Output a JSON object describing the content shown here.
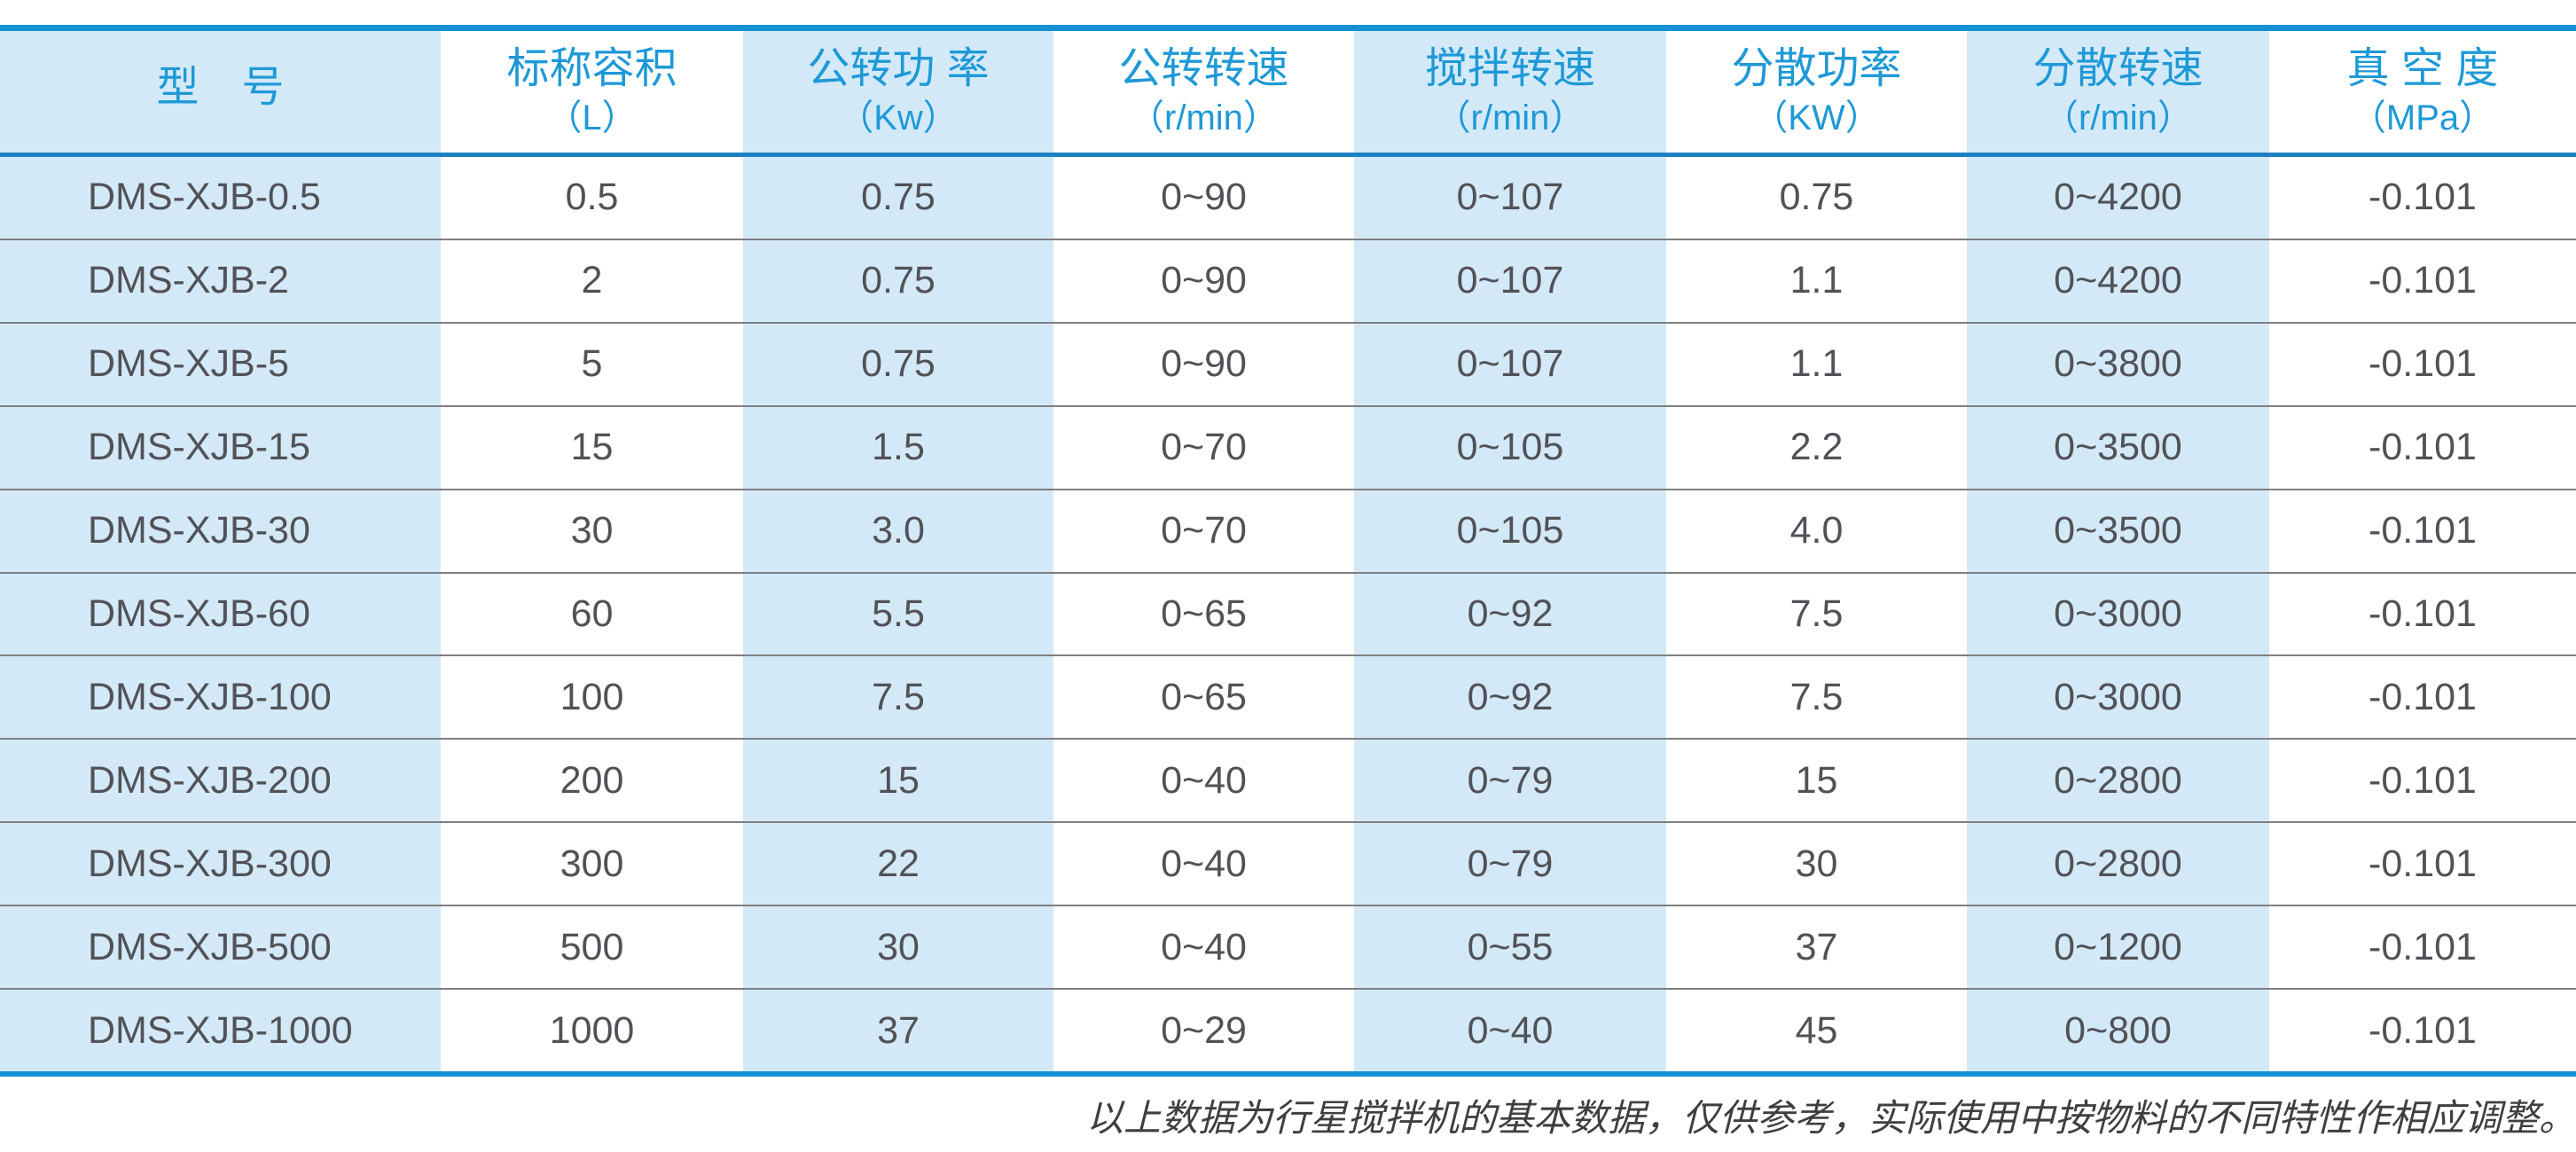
{
  "table": {
    "columns": [
      {
        "title": "型　号",
        "unit": ""
      },
      {
        "title": "标称容积",
        "unit": "（L）"
      },
      {
        "title": "公转功 率",
        "unit": "（Kw）"
      },
      {
        "title": "公转转速",
        "unit": "（r/min）"
      },
      {
        "title": "搅拌转速",
        "unit": "（r/min）"
      },
      {
        "title": "分散功率",
        "unit": "（KW）"
      },
      {
        "title": "分散转速",
        "unit": "（r/min）"
      },
      {
        "title": "真 空 度",
        "unit": "（MPa）"
      }
    ],
    "rows": [
      [
        "DMS-XJB-0.5",
        "0.5",
        "0.75",
        "0~90",
        "0~107",
        "0.75",
        "0~4200",
        "-0.101"
      ],
      [
        "DMS-XJB-2",
        "2",
        "0.75",
        "0~90",
        "0~107",
        "1.1",
        "0~4200",
        "-0.101"
      ],
      [
        "DMS-XJB-5",
        "5",
        "0.75",
        "0~90",
        "0~107",
        "1.1",
        "0~3800",
        "-0.101"
      ],
      [
        "DMS-XJB-15",
        "15",
        "1.5",
        "0~70",
        "0~105",
        "2.2",
        "0~3500",
        "-0.101"
      ],
      [
        "DMS-XJB-30",
        "30",
        "3.0",
        "0~70",
        "0~105",
        "4.0",
        "0~3500",
        "-0.101"
      ],
      [
        "DMS-XJB-60",
        "60",
        "5.5",
        "0~65",
        "0~92",
        "7.5",
        "0~3000",
        "-0.101"
      ],
      [
        "DMS-XJB-100",
        "100",
        "7.5",
        "0~65",
        "0~92",
        "7.5",
        "0~3000",
        "-0.101"
      ],
      [
        "DMS-XJB-200",
        "200",
        "15",
        "0~40",
        "0~79",
        "15",
        "0~2800",
        "-0.101"
      ],
      [
        "DMS-XJB-300",
        "300",
        "22",
        "0~40",
        "0~79",
        "30",
        "0~2800",
        "-0.101"
      ],
      [
        "DMS-XJB-500",
        "500",
        "30",
        "0~40",
        "0~55",
        "37",
        "0~1200",
        "-0.101"
      ],
      [
        "DMS-XJB-1000",
        "1000",
        "37",
        "0~29",
        "0~40",
        "45",
        "0~800",
        "-0.101"
      ]
    ]
  },
  "footer": {
    "note": "以上数据为行星搅拌机的基本数据，仅供参考，实际使用中按物料的不同特性作相应调整。"
  },
  "colors": {
    "accent_blue": "#1591d3",
    "header_underline_blue": "#1d80c2",
    "header_text_blue": "#1e99d7",
    "light_blue_column_bg": "#d4e9f8",
    "white_column_bg": "#ffffff",
    "body_text": "#515257",
    "row_separator_gray": "#7f7f80",
    "footer_text": "#3f3f3f"
  }
}
